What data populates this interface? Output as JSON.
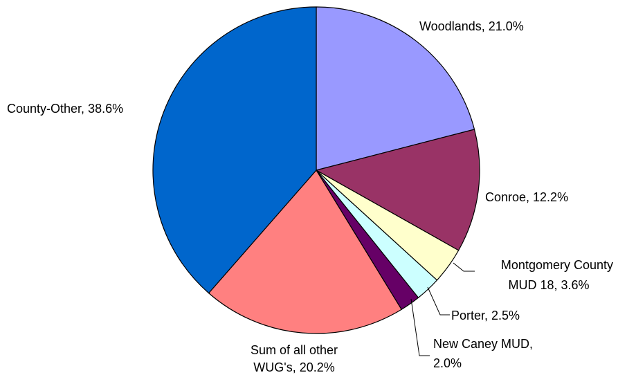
{
  "chart_data": {
    "type": "pie",
    "title": "",
    "start_angle_deg": 0,
    "direction": "clockwise",
    "slices": [
      {
        "label": "Woodlands, 21.0%",
        "value": 21.0,
        "color": "#9999ff"
      },
      {
        "label": "Conroe, 12.2%",
        "value": 12.2,
        "color": "#993366"
      },
      {
        "label": [
          "Montgomery County",
          "MUD 18, 3.6%"
        ],
        "value": 3.6,
        "color": "#ffffcc"
      },
      {
        "label": "Porter, 2.5%",
        "value": 2.5,
        "color": "#ccffff"
      },
      {
        "label": [
          "New Caney MUD,",
          "2.0%"
        ],
        "value": 2.0,
        "color": "#660066"
      },
      {
        "label": [
          "Sum of all other",
          "WUG's, 20.2%"
        ],
        "value": 20.2,
        "color": "#ff8080"
      },
      {
        "label": "County-Other, 38.6%",
        "value": 38.6,
        "color": "#0066cc"
      }
    ],
    "legend": "none",
    "slice_outline_color": "#000000"
  }
}
